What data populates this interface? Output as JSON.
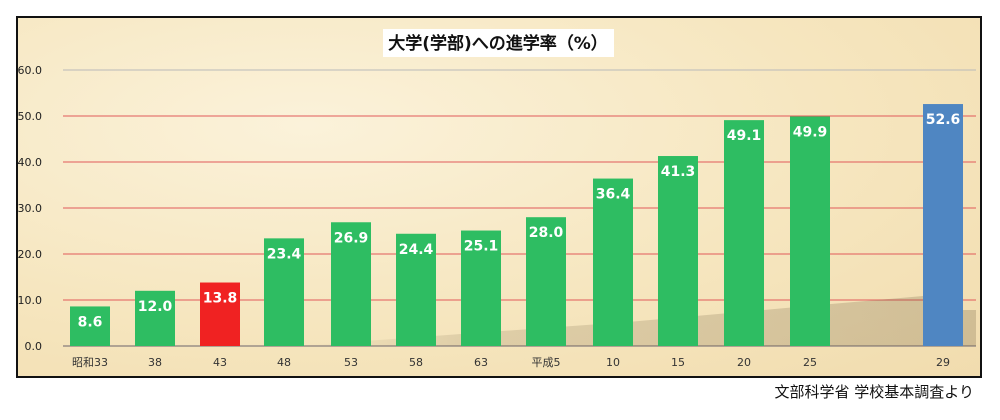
{
  "chart_data": {
    "type": "bar",
    "title": "大学(学部)への進学率（%）",
    "categories": [
      "昭和33",
      "38",
      "43",
      "48",
      "53",
      "58",
      "63",
      "平成5",
      "10",
      "15",
      "20",
      "25",
      "29"
    ],
    "values": [
      8.6,
      12.0,
      13.8,
      23.4,
      26.9,
      24.4,
      25.1,
      28.0,
      36.4,
      41.3,
      49.1,
      49.9,
      52.6
    ],
    "value_labels": [
      "8.6",
      "12.0",
      "13.8",
      "23.4",
      "26.9",
      "24.4",
      "25.1",
      "28.0",
      "36.4",
      "41.3",
      "49.1",
      "49.9",
      "52.6"
    ],
    "y_ticks": [
      "0.0",
      "10.0",
      "20.0",
      "30.0",
      "40.0",
      "50.0",
      "60.0"
    ],
    "ylim": [
      0,
      60
    ],
    "grid": true,
    "colors": {
      "default_bar": "#2ebd62",
      "highlight_red": "#f02222",
      "highlight_blue": "#4f86c2",
      "gridline": "#e15a5a",
      "zero_line": "#9a8e86",
      "top_gridline": "#b9b9b9"
    },
    "bar_colors": [
      "#2ebd62",
      "#2ebd62",
      "#f02222",
      "#2ebd62",
      "#2ebd62",
      "#2ebd62",
      "#2ebd62",
      "#2ebd62",
      "#2ebd62",
      "#2ebd62",
      "#2ebd62",
      "#2ebd62",
      "#4f86c2"
    ]
  },
  "source_note": "文部科学省 学校基本調査より"
}
